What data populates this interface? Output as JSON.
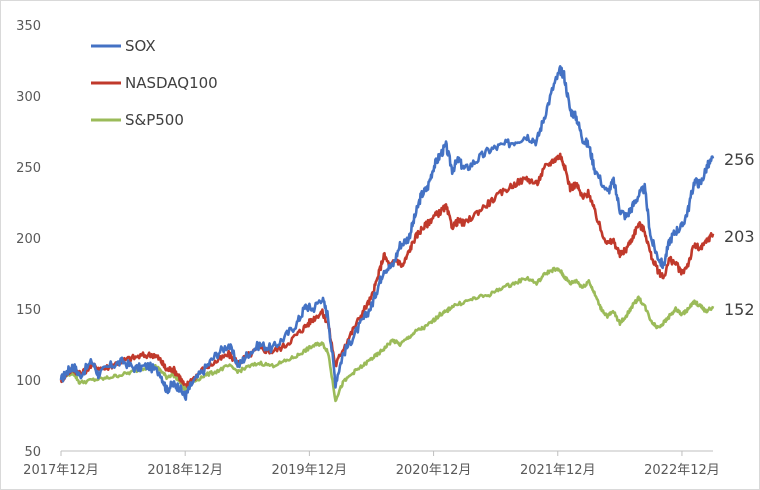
{
  "chart_data": {
    "type": "line",
    "title": "",
    "xlabel": "",
    "ylabel": "",
    "ylim": [
      50,
      350
    ],
    "yticks": [
      50,
      100,
      150,
      200,
      250,
      300,
      350
    ],
    "xticks": [
      "2017年12月",
      "2018年12月",
      "2019年12月",
      "2020年12月",
      "2021年12月",
      "2022年12月"
    ],
    "xrange_years": [
      2017.95,
      2023.2
    ],
    "grid": false,
    "legend": "top-left",
    "series": [
      {
        "name": "SOX",
        "color": "#4472c4",
        "end_label": "256",
        "points": [
          [
            2017.95,
            100
          ],
          [
            2018.0,
            106
          ],
          [
            2018.05,
            110
          ],
          [
            2018.1,
            103
          ],
          [
            2018.2,
            113
          ],
          [
            2018.25,
            104
          ],
          [
            2018.35,
            110
          ],
          [
            2018.45,
            113
          ],
          [
            2018.55,
            108
          ],
          [
            2018.65,
            110
          ],
          [
            2018.75,
            105
          ],
          [
            2018.8,
            93
          ],
          [
            2018.85,
            97
          ],
          [
            2018.9,
            95
          ],
          [
            2018.95,
            88
          ],
          [
            2019.0,
            97
          ],
          [
            2019.1,
            107
          ],
          [
            2019.2,
            118
          ],
          [
            2019.3,
            125
          ],
          [
            2019.38,
            110
          ],
          [
            2019.45,
            118
          ],
          [
            2019.55,
            125
          ],
          [
            2019.65,
            122
          ],
          [
            2019.75,
            130
          ],
          [
            2019.85,
            140
          ],
          [
            2019.92,
            152
          ],
          [
            2019.98,
            150
          ],
          [
            2020.05,
            158
          ],
          [
            2020.1,
            145
          ],
          [
            2020.16,
            98
          ],
          [
            2020.22,
            118
          ],
          [
            2020.3,
            130
          ],
          [
            2020.38,
            142
          ],
          [
            2020.45,
            152
          ],
          [
            2020.5,
            165
          ],
          [
            2020.55,
            178
          ],
          [
            2020.62,
            180
          ],
          [
            2020.68,
            195
          ],
          [
            2020.75,
            200
          ],
          [
            2020.8,
            215
          ],
          [
            2020.85,
            230
          ],
          [
            2020.9,
            235
          ],
          [
            2020.95,
            250
          ],
          [
            2021.0,
            258
          ],
          [
            2021.05,
            265
          ],
          [
            2021.1,
            248
          ],
          [
            2021.15,
            255
          ],
          [
            2021.2,
            248
          ],
          [
            2021.3,
            255
          ],
          [
            2021.4,
            262
          ],
          [
            2021.5,
            265
          ],
          [
            2021.6,
            268
          ],
          [
            2021.7,
            272
          ],
          [
            2021.78,
            268
          ],
          [
            2021.84,
            285
          ],
          [
            2021.92,
            308
          ],
          [
            2021.97,
            318
          ],
          [
            2022.0,
            315
          ],
          [
            2022.05,
            290
          ],
          [
            2022.1,
            285
          ],
          [
            2022.15,
            270
          ],
          [
            2022.2,
            265
          ],
          [
            2022.25,
            248
          ],
          [
            2022.35,
            232
          ],
          [
            2022.4,
            240
          ],
          [
            2022.45,
            220
          ],
          [
            2022.5,
            215
          ],
          [
            2022.55,
            222
          ],
          [
            2022.6,
            230
          ],
          [
            2022.65,
            235
          ],
          [
            2022.7,
            200
          ],
          [
            2022.75,
            188
          ],
          [
            2022.8,
            180
          ],
          [
            2022.85,
            198
          ],
          [
            2022.9,
            205
          ],
          [
            2022.95,
            208
          ],
          [
            2023.0,
            220
          ],
          [
            2023.05,
            240
          ],
          [
            2023.1,
            238
          ],
          [
            2023.15,
            250
          ],
          [
            2023.2,
            256
          ]
        ]
      },
      {
        "name": "NASDAQ100",
        "color": "#c0392b",
        "end_label": "203",
        "points": [
          [
            2017.95,
            100
          ],
          [
            2018.0,
            105
          ],
          [
            2018.05,
            108
          ],
          [
            2018.1,
            104
          ],
          [
            2018.2,
            110
          ],
          [
            2018.3,
            108
          ],
          [
            2018.4,
            112
          ],
          [
            2018.5,
            115
          ],
          [
            2018.6,
            117
          ],
          [
            2018.7,
            118
          ],
          [
            2018.75,
            114
          ],
          [
            2018.8,
            107
          ],
          [
            2018.85,
            108
          ],
          [
            2018.9,
            103
          ],
          [
            2018.95,
            95
          ],
          [
            2019.0,
            100
          ],
          [
            2019.1,
            108
          ],
          [
            2019.2,
            113
          ],
          [
            2019.3,
            118
          ],
          [
            2019.38,
            112
          ],
          [
            2019.45,
            117
          ],
          [
            2019.55,
            122
          ],
          [
            2019.65,
            120
          ],
          [
            2019.75,
            124
          ],
          [
            2019.85,
            132
          ],
          [
            2019.92,
            138
          ],
          [
            2019.98,
            143
          ],
          [
            2020.05,
            148
          ],
          [
            2020.1,
            140
          ],
          [
            2020.16,
            110
          ],
          [
            2020.22,
            122
          ],
          [
            2020.3,
            135
          ],
          [
            2020.38,
            148
          ],
          [
            2020.45,
            158
          ],
          [
            2020.5,
            172
          ],
          [
            2020.55,
            188
          ],
          [
            2020.6,
            180
          ],
          [
            2020.65,
            185
          ],
          [
            2020.7,
            180
          ],
          [
            2020.75,
            190
          ],
          [
            2020.8,
            200
          ],
          [
            2020.85,
            206
          ],
          [
            2020.9,
            210
          ],
          [
            2020.95,
            215
          ],
          [
            2021.0,
            218
          ],
          [
            2021.05,
            222
          ],
          [
            2021.1,
            208
          ],
          [
            2021.15,
            212
          ],
          [
            2021.2,
            210
          ],
          [
            2021.3,
            218
          ],
          [
            2021.4,
            225
          ],
          [
            2021.5,
            232
          ],
          [
            2021.6,
            238
          ],
          [
            2021.7,
            242
          ],
          [
            2021.78,
            238
          ],
          [
            2021.85,
            250
          ],
          [
            2021.92,
            255
          ],
          [
            2021.97,
            258
          ],
          [
            2022.0,
            252
          ],
          [
            2022.05,
            235
          ],
          [
            2022.1,
            238
          ],
          [
            2022.15,
            228
          ],
          [
            2022.2,
            232
          ],
          [
            2022.25,
            218
          ],
          [
            2022.3,
            205
          ],
          [
            2022.35,
            196
          ],
          [
            2022.4,
            198
          ],
          [
            2022.45,
            188
          ],
          [
            2022.5,
            192
          ],
          [
            2022.55,
            200
          ],
          [
            2022.6,
            210
          ],
          [
            2022.65,
            205
          ],
          [
            2022.7,
            188
          ],
          [
            2022.75,
            178
          ],
          [
            2022.8,
            172
          ],
          [
            2022.85,
            185
          ],
          [
            2022.9,
            182
          ],
          [
            2022.95,
            175
          ],
          [
            2023.0,
            182
          ],
          [
            2023.05,
            195
          ],
          [
            2023.1,
            192
          ],
          [
            2023.15,
            198
          ],
          [
            2023.2,
            203
          ]
        ]
      },
      {
        "name": "S&P500",
        "color": "#9bbb59",
        "end_label": "152",
        "points": [
          [
            2017.95,
            100
          ],
          [
            2018.0,
            104
          ],
          [
            2018.05,
            105
          ],
          [
            2018.1,
            98
          ],
          [
            2018.2,
            100
          ],
          [
            2018.3,
            101
          ],
          [
            2018.4,
            103
          ],
          [
            2018.5,
            105
          ],
          [
            2018.6,
            108
          ],
          [
            2018.7,
            110
          ],
          [
            2018.75,
            107
          ],
          [
            2018.8,
            102
          ],
          [
            2018.85,
            104
          ],
          [
            2018.9,
            100
          ],
          [
            2018.95,
            93
          ],
          [
            2019.0,
            98
          ],
          [
            2019.1,
            103
          ],
          [
            2019.2,
            106
          ],
          [
            2019.3,
            110
          ],
          [
            2019.38,
            106
          ],
          [
            2019.45,
            109
          ],
          [
            2019.55,
            112
          ],
          [
            2019.65,
            110
          ],
          [
            2019.75,
            113
          ],
          [
            2019.85,
            117
          ],
          [
            2019.92,
            121
          ],
          [
            2019.98,
            124
          ],
          [
            2020.05,
            126
          ],
          [
            2020.1,
            120
          ],
          [
            2020.16,
            86
          ],
          [
            2020.22,
            98
          ],
          [
            2020.3,
            105
          ],
          [
            2020.38,
            110
          ],
          [
            2020.45,
            115
          ],
          [
            2020.5,
            118
          ],
          [
            2020.55,
            122
          ],
          [
            2020.62,
            128
          ],
          [
            2020.68,
            125
          ],
          [
            2020.75,
            130
          ],
          [
            2020.82,
            135
          ],
          [
            2020.88,
            137
          ],
          [
            2020.95,
            142
          ],
          [
            2021.0,
            146
          ],
          [
            2021.05,
            148
          ],
          [
            2021.1,
            152
          ],
          [
            2021.2,
            155
          ],
          [
            2021.3,
            158
          ],
          [
            2021.4,
            160
          ],
          [
            2021.5,
            165
          ],
          [
            2021.6,
            168
          ],
          [
            2021.7,
            172
          ],
          [
            2021.78,
            168
          ],
          [
            2021.85,
            175
          ],
          [
            2021.92,
            178
          ],
          [
            2021.97,
            177
          ],
          [
            2022.0,
            173
          ],
          [
            2022.05,
            168
          ],
          [
            2022.1,
            170
          ],
          [
            2022.15,
            165
          ],
          [
            2022.2,
            170
          ],
          [
            2022.25,
            160
          ],
          [
            2022.3,
            150
          ],
          [
            2022.35,
            145
          ],
          [
            2022.4,
            148
          ],
          [
            2022.45,
            140
          ],
          [
            2022.5,
            145
          ],
          [
            2022.55,
            152
          ],
          [
            2022.6,
            158
          ],
          [
            2022.65,
            152
          ],
          [
            2022.7,
            142
          ],
          [
            2022.75,
            137
          ],
          [
            2022.8,
            140
          ],
          [
            2022.85,
            145
          ],
          [
            2022.9,
            150
          ],
          [
            2022.95,
            146
          ],
          [
            2023.0,
            150
          ],
          [
            2023.05,
            155
          ],
          [
            2023.1,
            152
          ],
          [
            2023.15,
            148
          ],
          [
            2023.2,
            152
          ]
        ]
      }
    ]
  }
}
